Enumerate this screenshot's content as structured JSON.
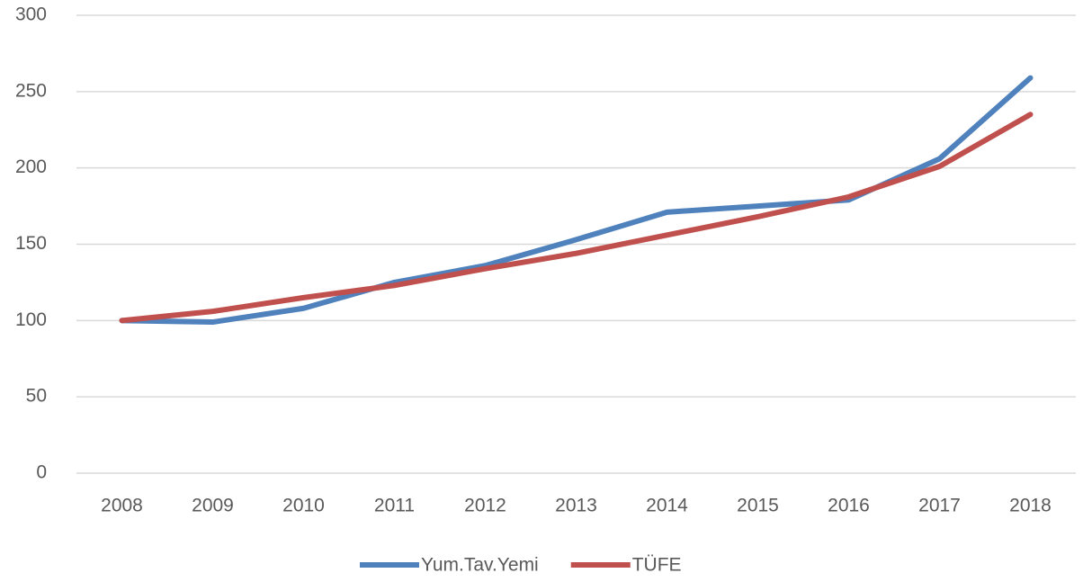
{
  "chart_data": {
    "type": "line",
    "categories": [
      "2008",
      "2009",
      "2010",
      "2011",
      "2012",
      "2013",
      "2014",
      "2015",
      "2016",
      "2017",
      "2018"
    ],
    "series": [
      {
        "name": "Yum.Tav.Yemi",
        "color": "#4f81bd",
        "values": [
          100,
          99,
          108,
          125,
          136,
          153,
          171,
          175,
          179,
          206,
          259
        ]
      },
      {
        "name": "TÜFE",
        "color": "#c0504d",
        "values": [
          100,
          106,
          115,
          123,
          134,
          144,
          156,
          168,
          181,
          201,
          235
        ]
      }
    ],
    "ylim": [
      0,
      300
    ],
    "yticks": [
      0,
      50,
      100,
      150,
      200,
      250,
      300
    ],
    "grid": true,
    "legend": "bottom"
  }
}
